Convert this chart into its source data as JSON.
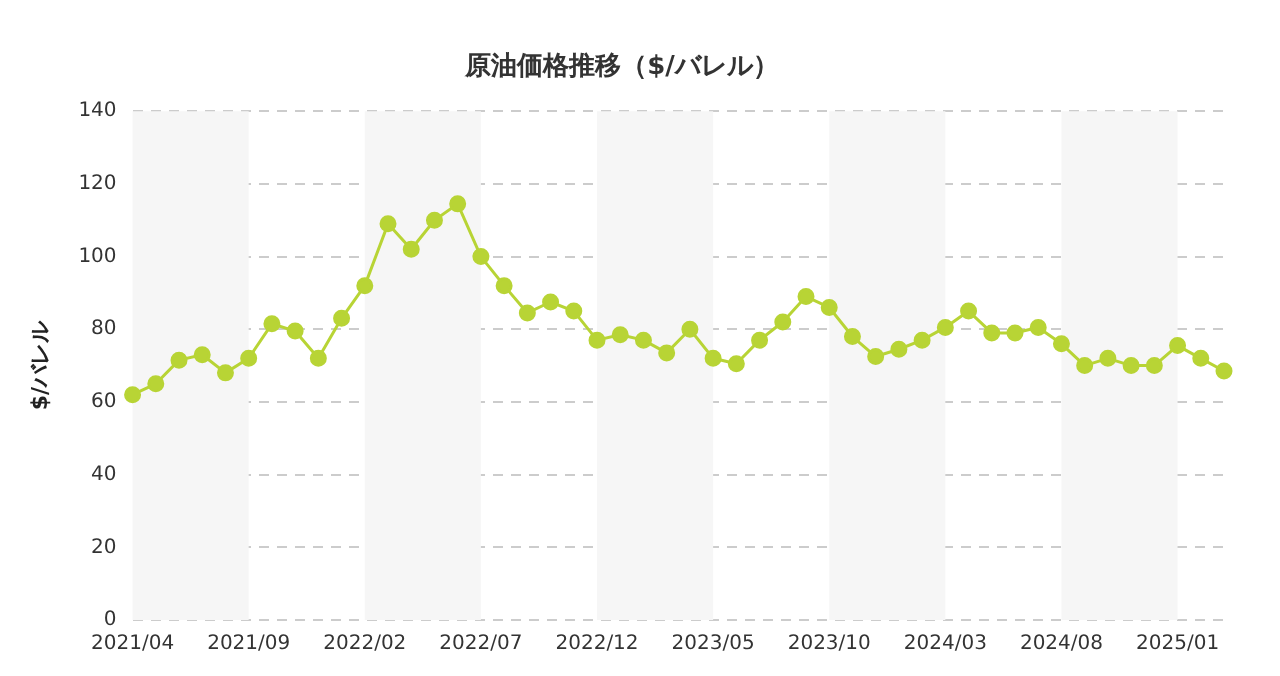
{
  "chart_data": {
    "type": "line",
    "title": "原油価格推移（$/バレル）",
    "ylabel": "$/バレル",
    "categories": [
      "2021/04",
      null,
      null,
      null,
      null,
      "2021/09",
      null,
      null,
      null,
      null,
      "2022/02",
      null,
      null,
      null,
      null,
      "2022/07",
      null,
      null,
      null,
      null,
      "2022/12",
      null,
      null,
      null,
      null,
      "2023/05",
      null,
      null,
      null,
      null,
      "2023/10",
      null,
      null,
      null,
      null,
      "2024/03",
      null,
      null,
      null,
      null,
      "2024/08",
      null,
      null,
      null,
      null,
      "2025/01",
      null,
      null
    ],
    "series": [
      {
        "color": "#b8d435",
        "values": [
          62,
          65,
          71.5,
          73,
          68,
          72,
          81.5,
          79.5,
          72,
          83,
          92,
          109,
          102,
          110,
          114.5,
          100,
          92,
          84.5,
          87.5,
          85,
          77,
          78.5,
          77,
          73.5,
          80,
          72,
          70.5,
          77,
          82,
          89,
          86,
          78,
          72.5,
          74.5,
          77,
          80.5,
          85,
          79,
          79,
          80.5,
          76,
          70,
          72,
          70,
          70,
          75.5,
          72,
          68.5
        ]
      }
    ],
    "ylim": [
      0,
      140
    ],
    "yticks": [
      0,
      20,
      40,
      60,
      80,
      100,
      120,
      140
    ],
    "grid": "y",
    "marker": "circle",
    "line_style": "solid",
    "bands": [
      {
        "axis": "x",
        "from": "2021/04",
        "to": "2021/09",
        "color": "#f6f6f6"
      },
      {
        "axis": "x",
        "from": "2022/02",
        "to": "2022/07",
        "color": "#f6f6f6"
      },
      {
        "axis": "x",
        "from": "2022/12",
        "to": "2023/05",
        "color": "#f6f6f6"
      },
      {
        "axis": "x",
        "from": "2023/10",
        "to": "2024/03",
        "color": "#f6f6f6"
      },
      {
        "axis": "x",
        "from": "2024/08",
        "to": "2025/01",
        "color": "#f6f6f6"
      }
    ]
  }
}
